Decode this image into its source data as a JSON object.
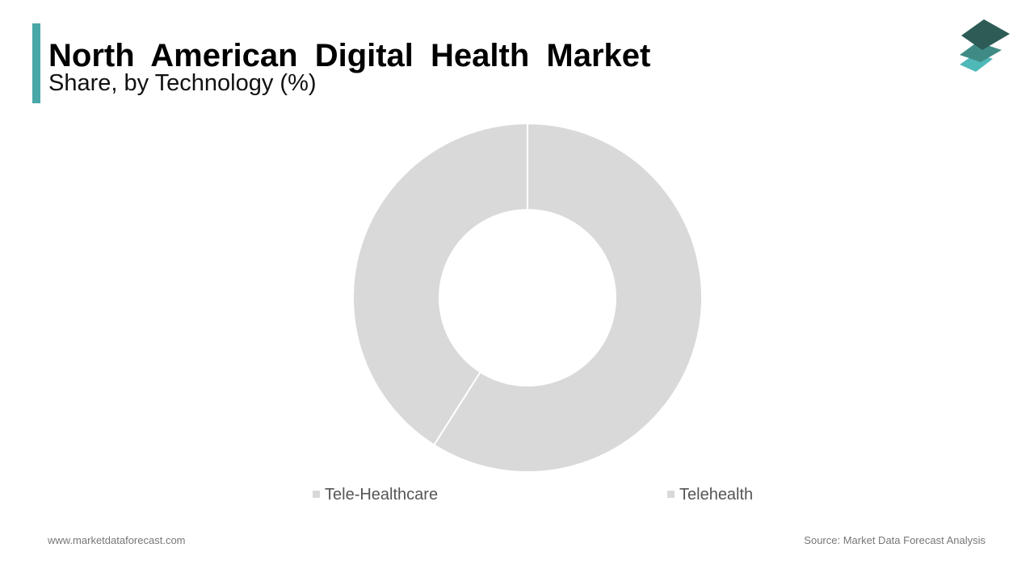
{
  "header": {
    "title": "North American Digital Health Market",
    "subtitle": "Share, by Technology (%)"
  },
  "colors": {
    "accent": "#4aa7a8",
    "slice": "#d9d9d9",
    "separator": "#ffffff",
    "logo_top": "#2d5b56",
    "logo_middle": "#3f8a84",
    "logo_bottom": "#4fb8b8"
  },
  "logo": {
    "icon": "stacked-layers-icon"
  },
  "chart_data": {
    "type": "pie",
    "donut": true,
    "categories": [
      "Tele-Healthcare",
      "Telehealth"
    ],
    "values": [
      41,
      59
    ],
    "legend": {
      "placement": "bottom",
      "entries": [
        "Tele-Healthcare",
        "Telehealth"
      ]
    },
    "slice_order_clockwise_from_top": [
      "Telehealth",
      "Tele-Healthcare"
    ]
  },
  "footer": {
    "website": "www.marketdataforecast.com",
    "source": "Source: Market Data Forecast Analysis"
  }
}
